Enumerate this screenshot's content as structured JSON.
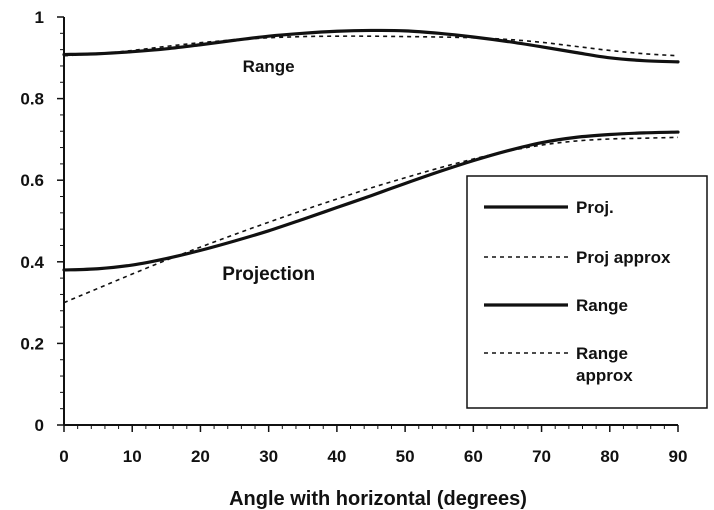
{
  "chart_data": {
    "type": "line",
    "title": "",
    "xlabel": "Angle with horizontal (degrees)",
    "ylabel": "",
    "xlim": [
      0,
      90
    ],
    "ylim": [
      0,
      1
    ],
    "xticks": [
      "0",
      "10",
      "20",
      "30",
      "40",
      "50",
      "60",
      "70",
      "80",
      "90"
    ],
    "yticks": [
      "0",
      "0.2",
      "0.4",
      "0.6",
      "0.8",
      "1"
    ],
    "grid": false,
    "legend_position": "right",
    "series": [
      {
        "name": "Proj.",
        "style": "solid",
        "x": [
          0,
          5,
          10,
          15,
          20,
          25,
          30,
          35,
          40,
          45,
          50,
          55,
          60,
          65,
          70,
          75,
          80,
          85,
          90
        ],
        "y": [
          0.38,
          0.383,
          0.392,
          0.408,
          0.428,
          0.451,
          0.476,
          0.504,
          0.533,
          0.562,
          0.592,
          0.621,
          0.648,
          0.672,
          0.692,
          0.705,
          0.712,
          0.716,
          0.718
        ]
      },
      {
        "name": "Proj approx",
        "style": "dotted",
        "x": [
          0,
          5,
          10,
          15,
          20,
          25,
          30,
          35,
          40,
          45,
          50,
          55,
          60,
          65,
          70,
          75,
          80,
          85,
          90
        ],
        "y": [
          0.3,
          0.335,
          0.37,
          0.404,
          0.436,
          0.467,
          0.497,
          0.526,
          0.554,
          0.581,
          0.606,
          0.63,
          0.652,
          0.671,
          0.686,
          0.696,
          0.701,
          0.703,
          0.705
        ]
      },
      {
        "name": "Range",
        "style": "solid",
        "x": [
          0,
          5,
          10,
          15,
          20,
          25,
          30,
          35,
          40,
          45,
          50,
          55,
          60,
          65,
          70,
          75,
          80,
          85,
          90
        ],
        "y": [
          0.908,
          0.91,
          0.915,
          0.922,
          0.932,
          0.943,
          0.953,
          0.96,
          0.965,
          0.967,
          0.966,
          0.96,
          0.951,
          0.94,
          0.927,
          0.913,
          0.9,
          0.893,
          0.89
        ]
      },
      {
        "name": "Range approx",
        "style": "dotted",
        "x": [
          0,
          5,
          10,
          15,
          20,
          25,
          30,
          35,
          40,
          45,
          50,
          55,
          60,
          65,
          70,
          75,
          80,
          85,
          90
        ],
        "y": [
          0.905,
          0.91,
          0.918,
          0.928,
          0.937,
          0.944,
          0.949,
          0.952,
          0.953,
          0.953,
          0.952,
          0.951,
          0.949,
          0.945,
          0.938,
          0.928,
          0.918,
          0.91,
          0.905
        ]
      }
    ],
    "legend": [
      {
        "label": "Proj.",
        "style": "solid"
      },
      {
        "label": "Proj approx",
        "style": "dotted"
      },
      {
        "label": "Range",
        "style": "solid"
      },
      {
        "label": "Range\napprox",
        "style": "dotted"
      }
    ],
    "annotations": [
      {
        "text": "Range",
        "x": 30,
        "y": 0.865
      },
      {
        "text": "Projection",
        "x": 30,
        "y": 0.355
      }
    ]
  }
}
